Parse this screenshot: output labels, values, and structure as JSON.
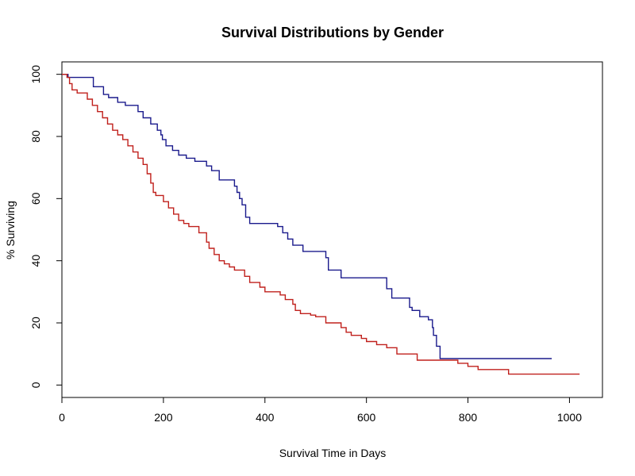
{
  "chart_data": {
    "type": "line",
    "step": true,
    "title": "Survival Distributions by Gender",
    "xlabel": "Survival Time in Days",
    "ylabel": "% Surviving",
    "xlim": [
      0,
      1065
    ],
    "ylim": [
      -4,
      104
    ],
    "x_ticks": [
      0,
      200,
      400,
      600,
      800,
      1000
    ],
    "y_ticks": [
      0,
      20,
      40,
      60,
      80,
      100
    ],
    "grid": false,
    "legend": "none",
    "series": [
      {
        "color": "#1a1a8c",
        "x": [
          0,
          12,
          62,
          82,
          92,
          110,
          125,
          150,
          160,
          175,
          188,
          195,
          198,
          205,
          218,
          230,
          245,
          262,
          285,
          295,
          310,
          340,
          345,
          350,
          355,
          362,
          370,
          425,
          435,
          445,
          455,
          475,
          520,
          525,
          550,
          640,
          650,
          685,
          690,
          705,
          722,
          730,
          732,
          738,
          745,
          765,
          965
        ],
        "y": [
          100,
          99,
          96,
          93.5,
          92.5,
          91,
          90,
          88,
          86,
          84,
          82,
          80.5,
          79,
          77,
          75.5,
          74,
          73,
          72,
          70.5,
          69,
          66,
          64,
          62,
          60,
          58,
          54,
          52,
          51,
          49,
          47,
          45,
          43,
          41,
          37,
          34.5,
          31,
          28,
          25,
          24,
          22,
          21,
          18.5,
          16,
          12.5,
          8.5,
          8.5,
          8.5
        ]
      },
      {
        "color": "#c0201c",
        "x": [
          0,
          10,
          15,
          20,
          30,
          50,
          60,
          70,
          80,
          90,
          100,
          110,
          120,
          130,
          140,
          150,
          160,
          168,
          175,
          180,
          185,
          200,
          210,
          220,
          230,
          240,
          250,
          270,
          285,
          290,
          300,
          310,
          320,
          330,
          340,
          360,
          370,
          390,
          400,
          430,
          440,
          455,
          460,
          470,
          490,
          500,
          520,
          550,
          560,
          570,
          590,
          600,
          620,
          640,
          660,
          700,
          780,
          800,
          820,
          880,
          1020
        ],
        "y": [
          100,
          99,
          97,
          95,
          94,
          92,
          90,
          88,
          86,
          84,
          82,
          80.5,
          79,
          77,
          75,
          73,
          71,
          68,
          65,
          62,
          61,
          59,
          57,
          55,
          53,
          52,
          51,
          49,
          46,
          44,
          42,
          40,
          39,
          38,
          37,
          35,
          33,
          31.5,
          30,
          29,
          27.5,
          26,
          24,
          23,
          22.5,
          22,
          20,
          18.5,
          17,
          16,
          15,
          14,
          13,
          12,
          10,
          8,
          7,
          6,
          5,
          3.5,
          3.5
        ]
      }
    ]
  }
}
